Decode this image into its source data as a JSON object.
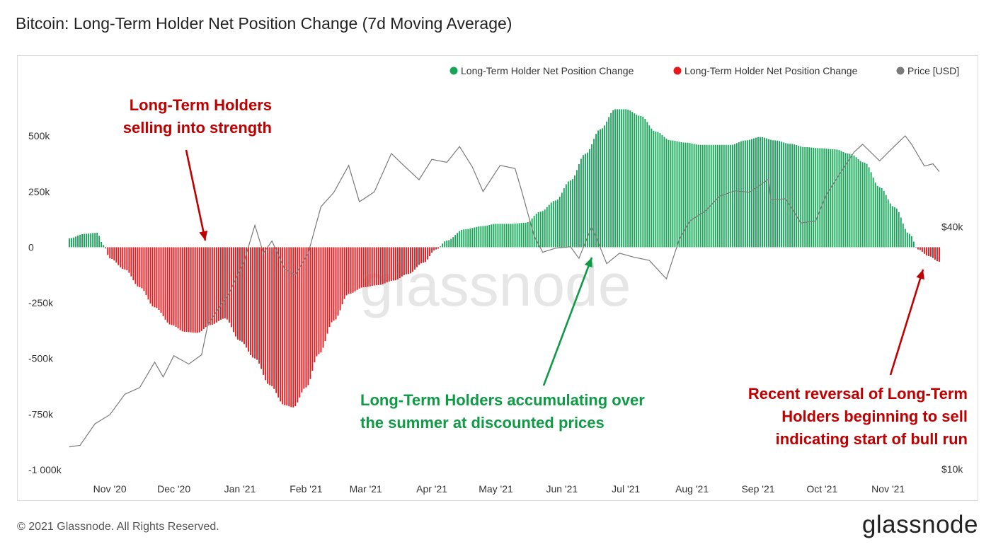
{
  "title": "Bitcoin: Long-Term Holder Net Position Change (7d Moving Average)",
  "footer": "© 2021 Glassnode. All Rights Reserved.",
  "brand": "glassnode",
  "watermark": "glassnode",
  "colors": {
    "positive": "#14a657",
    "negative": "#e8171b",
    "price": "#7a7a7a",
    "ann_red": "#c00000",
    "ann_green": "#0f9a45"
  },
  "chart_data": {
    "type": "bar",
    "title": "Bitcoin: Long-Term Holder Net Position Change (7d Moving Average)",
    "legend": [
      {
        "name": "Long-Term Holder Net Position Change",
        "color": "#14a657",
        "marker": "dot"
      },
      {
        "name": "Long-Term Holder Net Position Change",
        "color": "#e8171b",
        "marker": "dot"
      },
      {
        "name": "Price [USD]",
        "color": "#7a7a7a",
        "marker": "dot"
      }
    ],
    "legend_placement": "top-right",
    "x_range": [
      "2020-10-13",
      "2021-11-25"
    ],
    "x_ticks": [
      {
        "date": "2020-11-01",
        "label": "Nov '20"
      },
      {
        "date": "2020-12-01",
        "label": "Dec '20"
      },
      {
        "date": "2021-01-01",
        "label": "Jan '21"
      },
      {
        "date": "2021-02-01",
        "label": "Feb '21"
      },
      {
        "date": "2021-03-01",
        "label": "Mar '21"
      },
      {
        "date": "2021-04-01",
        "label": "Apr '21"
      },
      {
        "date": "2021-05-01",
        "label": "May '21"
      },
      {
        "date": "2021-06-01",
        "label": "Jun '21"
      },
      {
        "date": "2021-07-01",
        "label": "Jul '21"
      },
      {
        "date": "2021-08-01",
        "label": "Aug '21"
      },
      {
        "date": "2021-09-01",
        "label": "Sep '21"
      },
      {
        "date": "2021-10-01",
        "label": "Oct '21"
      },
      {
        "date": "2021-11-01",
        "label": "Nov '21"
      }
    ],
    "y_left": {
      "ylim": [
        -1000000,
        650000
      ],
      "ticks": [
        {
          "value": 500000,
          "label": "500k"
        },
        {
          "value": 250000,
          "label": "250k"
        },
        {
          "value": 0,
          "label": "0"
        },
        {
          "value": -250000,
          "label": "-250k"
        },
        {
          "value": -500000,
          "label": "-500k"
        },
        {
          "value": -750000,
          "label": "-750k"
        },
        {
          "value": -1000000,
          "label": "-1 000k"
        }
      ]
    },
    "y_right": {
      "scale": "log",
      "ylim": [
        10000,
        80000
      ],
      "ticks": [
        {
          "value": 40000,
          "label": "$40k"
        },
        {
          "value": 10000,
          "label": "$10k"
        }
      ]
    },
    "net_position": [
      [
        "2020-10-13",
        40000
      ],
      [
        "2020-10-20",
        60000
      ],
      [
        "2020-10-26",
        65000
      ],
      [
        "2020-10-29",
        10000
      ],
      [
        "2020-11-01",
        -50000
      ],
      [
        "2020-11-08",
        -100000
      ],
      [
        "2020-11-15",
        -180000
      ],
      [
        "2020-11-22",
        -270000
      ],
      [
        "2020-11-30",
        -350000
      ],
      [
        "2020-12-06",
        -380000
      ],
      [
        "2020-12-12",
        -385000
      ],
      [
        "2020-12-18",
        -350000
      ],
      [
        "2020-12-25",
        -320000
      ],
      [
        "2021-01-01",
        -420000
      ],
      [
        "2021-01-08",
        -500000
      ],
      [
        "2021-01-15",
        -620000
      ],
      [
        "2021-01-22",
        -710000
      ],
      [
        "2021-01-26",
        -720000
      ],
      [
        "2021-02-01",
        -630000
      ],
      [
        "2021-02-07",
        -480000
      ],
      [
        "2021-02-14",
        -330000
      ],
      [
        "2021-02-21",
        -210000
      ],
      [
        "2021-02-28",
        -180000
      ],
      [
        "2021-03-07",
        -170000
      ],
      [
        "2021-03-14",
        -150000
      ],
      [
        "2021-03-21",
        -120000
      ],
      [
        "2021-03-28",
        -70000
      ],
      [
        "2021-04-03",
        -10000
      ],
      [
        "2021-04-08",
        30000
      ],
      [
        "2021-04-16",
        80000
      ],
      [
        "2021-04-25",
        95000
      ],
      [
        "2021-05-01",
        105000
      ],
      [
        "2021-05-08",
        105000
      ],
      [
        "2021-05-15",
        110000
      ],
      [
        "2021-05-22",
        160000
      ],
      [
        "2021-05-29",
        210000
      ],
      [
        "2021-06-05",
        300000
      ],
      [
        "2021-06-12",
        420000
      ],
      [
        "2021-06-19",
        530000
      ],
      [
        "2021-06-26",
        620000
      ],
      [
        "2021-07-01",
        620000
      ],
      [
        "2021-07-08",
        590000
      ],
      [
        "2021-07-15",
        520000
      ],
      [
        "2021-07-22",
        480000
      ],
      [
        "2021-07-29",
        470000
      ],
      [
        "2021-08-05",
        460000
      ],
      [
        "2021-08-12",
        460000
      ],
      [
        "2021-08-19",
        460000
      ],
      [
        "2021-08-26",
        480000
      ],
      [
        "2021-09-02",
        495000
      ],
      [
        "2021-09-09",
        480000
      ],
      [
        "2021-09-16",
        465000
      ],
      [
        "2021-09-23",
        450000
      ],
      [
        "2021-09-30",
        445000
      ],
      [
        "2021-10-07",
        440000
      ],
      [
        "2021-10-14",
        420000
      ],
      [
        "2021-10-21",
        380000
      ],
      [
        "2021-10-28",
        270000
      ],
      [
        "2021-11-04",
        180000
      ],
      [
        "2021-11-11",
        60000
      ],
      [
        "2021-11-15",
        -10000
      ],
      [
        "2021-11-20",
        -40000
      ],
      [
        "2021-11-25",
        -65000
      ]
    ],
    "price_usd": [
      [
        "2020-10-13",
        11400
      ],
      [
        "2020-10-18",
        11500
      ],
      [
        "2020-10-25",
        13000
      ],
      [
        "2020-11-01",
        13700
      ],
      [
        "2020-11-08",
        15400
      ],
      [
        "2020-11-15",
        16000
      ],
      [
        "2020-11-22",
        18500
      ],
      [
        "2020-11-26",
        17000
      ],
      [
        "2020-12-01",
        19200
      ],
      [
        "2020-12-08",
        18300
      ],
      [
        "2020-12-14",
        19300
      ],
      [
        "2020-12-17",
        23000
      ],
      [
        "2020-12-27",
        27500
      ],
      [
        "2021-01-03",
        33000
      ],
      [
        "2021-01-08",
        40500
      ],
      [
        "2021-01-12",
        34500
      ],
      [
        "2021-01-16",
        37000
      ],
      [
        "2021-01-22",
        31500
      ],
      [
        "2021-01-27",
        30500
      ],
      [
        "2021-02-02",
        34500
      ],
      [
        "2021-02-08",
        45000
      ],
      [
        "2021-02-14",
        48800
      ],
      [
        "2021-02-21",
        57000
      ],
      [
        "2021-02-26",
        46300
      ],
      [
        "2021-03-05",
        49000
      ],
      [
        "2021-03-13",
        61000
      ],
      [
        "2021-03-18",
        57500
      ],
      [
        "2021-03-26",
        52500
      ],
      [
        "2021-04-01",
        59000
      ],
      [
        "2021-04-08",
        58000
      ],
      [
        "2021-04-14",
        63500
      ],
      [
        "2021-04-20",
        56500
      ],
      [
        "2021-04-25",
        49100
      ],
      [
        "2021-05-03",
        57000
      ],
      [
        "2021-05-10",
        56000
      ],
      [
        "2021-05-13",
        49500
      ],
      [
        "2021-05-19",
        38000
      ],
      [
        "2021-05-23",
        34700
      ],
      [
        "2021-05-29",
        35500
      ],
      [
        "2021-06-05",
        35800
      ],
      [
        "2021-06-09",
        33500
      ],
      [
        "2021-06-15",
        40200
      ],
      [
        "2021-06-22",
        32500
      ],
      [
        "2021-06-28",
        34500
      ],
      [
        "2021-07-05",
        33700
      ],
      [
        "2021-07-12",
        33100
      ],
      [
        "2021-07-20",
        29800
      ],
      [
        "2021-07-26",
        37300
      ],
      [
        "2021-07-31",
        41500
      ],
      [
        "2021-08-07",
        43800
      ],
      [
        "2021-08-14",
        47800
      ],
      [
        "2021-08-21",
        49300
      ],
      [
        "2021-08-28",
        48900
      ],
      [
        "2021-09-06",
        52700
      ],
      [
        "2021-09-07",
        46800
      ],
      [
        "2021-09-14",
        47100
      ],
      [
        "2021-09-21",
        41000
      ],
      [
        "2021-09-28",
        41500
      ],
      [
        "2021-10-03",
        48200
      ],
      [
        "2021-10-10",
        55000
      ],
      [
        "2021-10-16",
        61500
      ],
      [
        "2021-10-20",
        64300
      ],
      [
        "2021-10-28",
        58500
      ],
      [
        "2021-11-03",
        62900
      ],
      [
        "2021-11-09",
        67500
      ],
      [
        "2021-11-12",
        64300
      ],
      [
        "2021-11-18",
        56800
      ],
      [
        "2021-11-22",
        57500
      ],
      [
        "2021-11-25",
        55000
      ]
    ],
    "annotations": [
      {
        "lines": [
          "Long-Term Holders",
          "selling into strength"
        ],
        "color": "#c00000"
      },
      {
        "lines": [
          "Long-Term Holders accumulating over",
          "the summer at discounted prices"
        ],
        "color": "#0f9a45"
      },
      {
        "lines": [
          "Recent reversal of Long-Term",
          "Holders beginning to sell",
          "indicating start of bull run"
        ],
        "color": "#c00000"
      }
    ]
  }
}
